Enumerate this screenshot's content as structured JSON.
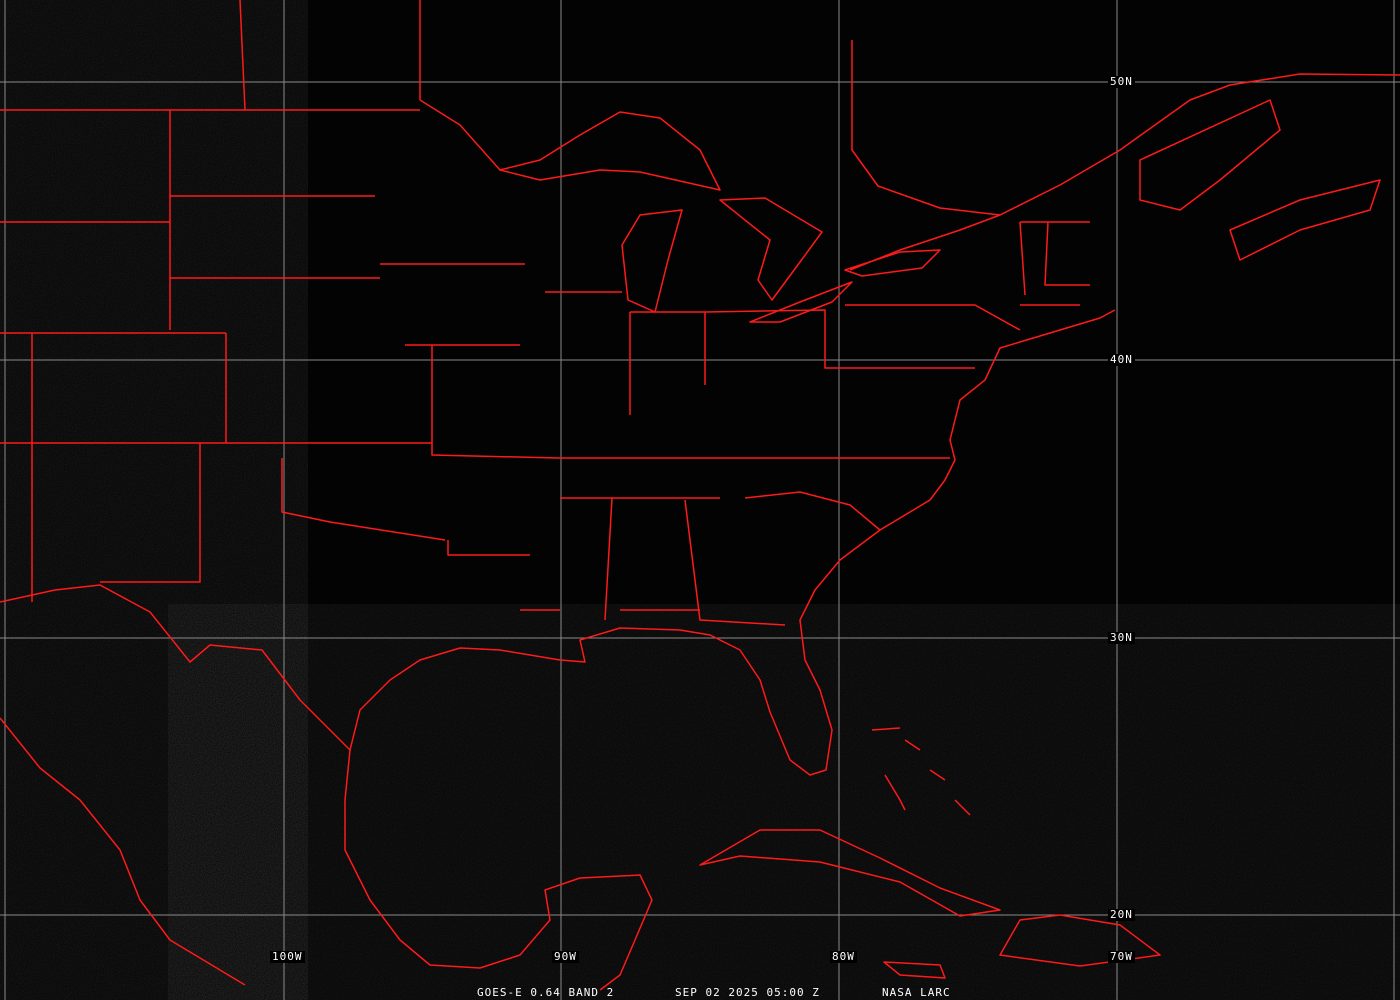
{
  "image": {
    "type": "satellite visible imagery map",
    "colors": {
      "background": "#030303",
      "borders": "#ff1a1a",
      "grid": "#8a8a8a",
      "text": "#ffffff"
    }
  },
  "grid": {
    "longitude_labels": [
      "100W",
      "90W",
      "80W",
      "70W"
    ],
    "latitude_labels": [
      "50N",
      "40N",
      "30N",
      "20N"
    ]
  },
  "caption": {
    "satellite": "GOES-E 0.64 BAND 2",
    "datetime": "SEP 02 2025 05:00 Z",
    "source": "NASA LARC"
  }
}
